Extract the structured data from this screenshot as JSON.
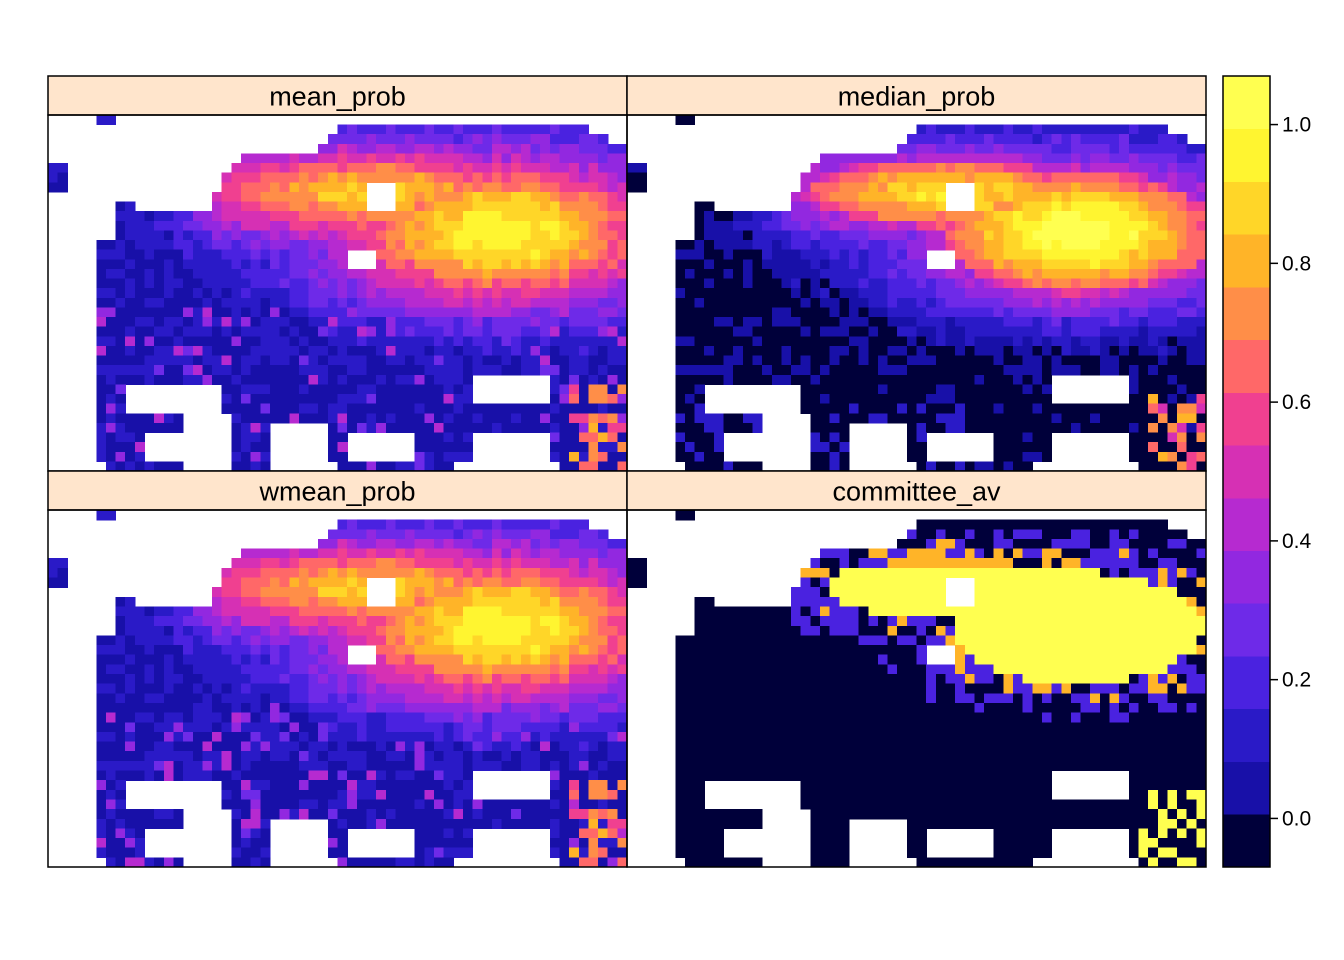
{
  "chart_data": {
    "type": "heatmap",
    "layout": "2x2 panels sharing one color key on the right",
    "panels": [
      {
        "title": "mean_prob",
        "summary": "Moderate-to-high probabilities (0.6-0.9) across northern/central-eastern Europe, peaking near 0.9 in the east; low values (0.0-0.2) over western and southern Europe; a few 0.6-0.8 cells in the south-east."
      },
      {
        "title": "median_prob",
        "summary": "Similar pattern to mean_prob but stronger contrast: values near 0.9-1.0 in northern/eastern Europe and many cells near 0.0 in the south-west."
      },
      {
        "title": "wmean_prob",
        "summary": "Nearly identical to mean_prob: 0.6-0.9 in the north-east, 0.0-0.2 across the west and south."
      },
      {
        "title": "committee_av",
        "summary": "Mostly binary: 1.0 across northern/central-eastern Europe, 0.8 at the northern fringe and eastern edge, 0.0 over the west and south, 1.0 patches in the south-east corner."
      }
    ],
    "colorkey": {
      "breaks": [
        -0.05,
        0.05,
        0.15,
        0.25,
        0.35,
        0.45,
        0.55,
        0.65,
        0.75,
        0.85,
        0.95,
        1.05
      ],
      "range": [
        -0.07,
        1.07
      ],
      "ticks": [
        "0.0",
        "0.2",
        "0.4",
        "0.6",
        "0.8",
        "1.0"
      ],
      "tick_values": [
        0,
        0.2,
        0.4,
        0.6,
        0.8,
        1.0
      ],
      "palette": [
        "#0D0887",
        "#1810A8",
        "#2A1AC7",
        "#4A22E0",
        "#6E2AE8",
        "#9228E0",
        "#B62AD0",
        "#D630B4",
        "#F04090",
        "#FF6868",
        "#FF8E48",
        "#FFB428",
        "#FFD628",
        "#FFF530",
        "#FFFF50"
      ]
    },
    "colors": {
      "strip_background": "#FFE5CC",
      "missing": "#FFFFFF",
      "zero": "#00003A",
      "frame": "#000000"
    }
  }
}
